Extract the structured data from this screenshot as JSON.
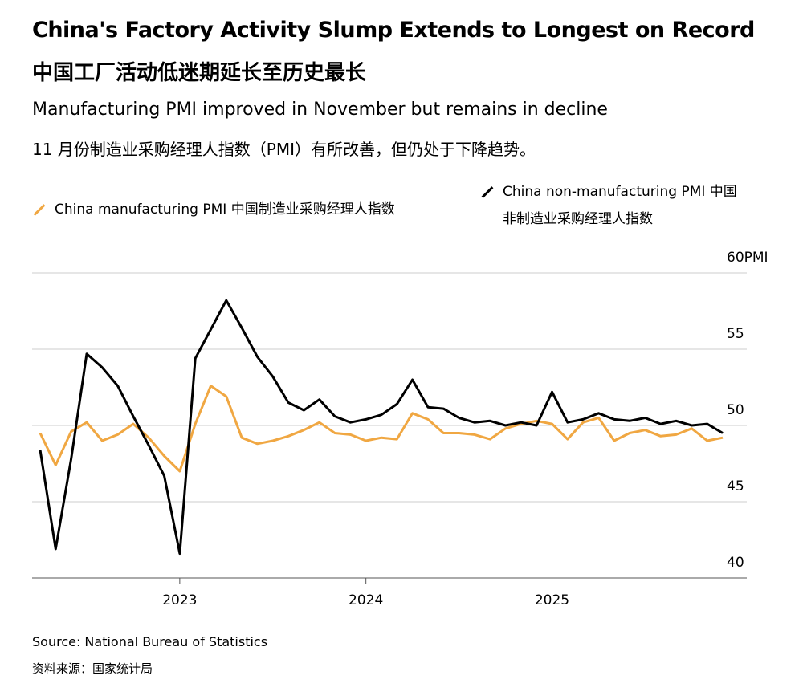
{
  "chart_data": {
    "type": "line",
    "title": "China's Factory Activity Slump Extends to Longest on Record",
    "title_zh": "中国工厂活动低迷期延长至历史最长",
    "subtitle": "Manufacturing PMI improved in November but remains in decline",
    "subtitle_zh": "11 月份制造业采购经理人指数（PMI）有所改善，但仍处于下降趋势。",
    "source": "Source: National Bureau of Statistics",
    "source_zh": "资料来源：国家统计局",
    "categories": [
      null,
      null,
      null,
      null,
      null,
      null,
      null,
      null,
      null,
      "2023",
      null,
      null,
      null,
      null,
      null,
      null,
      null,
      null,
      null,
      null,
      null,
      "2024",
      null,
      null,
      null,
      null,
      null,
      null,
      null,
      null,
      null,
      null,
      null,
      "2025",
      null,
      null,
      null,
      null,
      null,
      null,
      null,
      null,
      null,
      null,
      null
    ],
    "series": [
      {
        "name": "China manufacturing PMI  中国制造业采购经理人指数",
        "color": "#f0a742",
        "values": [
          49.5,
          47.4,
          49.6,
          50.2,
          49.0,
          49.4,
          50.1,
          49.2,
          48.0,
          47.0,
          50.1,
          52.6,
          51.9,
          49.2,
          48.8,
          49.0,
          49.3,
          49.7,
          50.2,
          49.5,
          49.4,
          49.0,
          49.2,
          49.1,
          50.8,
          50.4,
          49.5,
          49.5,
          49.4,
          49.1,
          49.8,
          50.1,
          50.3,
          50.1,
          49.1,
          50.2,
          50.5,
          49.0,
          49.5,
          49.7,
          49.3,
          49.4,
          49.8,
          49.0,
          49.2
        ]
      },
      {
        "name": "China non-manufacturing PMI 中国非制造业采购经理人指数",
        "color": "#000000",
        "values": [
          48.4,
          41.9,
          47.8,
          54.7,
          53.8,
          52.6,
          50.6,
          48.7,
          46.7,
          41.6,
          54.4,
          56.3,
          58.2,
          56.4,
          54.5,
          53.2,
          51.5,
          51.0,
          51.7,
          50.6,
          50.2,
          50.4,
          50.7,
          51.4,
          53.0,
          51.2,
          51.1,
          50.5,
          50.2,
          50.3,
          50.0,
          50.2,
          50.0,
          52.2,
          50.2,
          50.4,
          50.8,
          50.4,
          50.3,
          50.5,
          50.1,
          50.3,
          50.0,
          50.1,
          49.5
        ]
      }
    ],
    "ylim": [
      40,
      60
    ],
    "yticks": [
      40,
      45,
      50,
      55,
      {
        "value": 60,
        "label": "60PMI"
      }
    ],
    "grid": true
  }
}
